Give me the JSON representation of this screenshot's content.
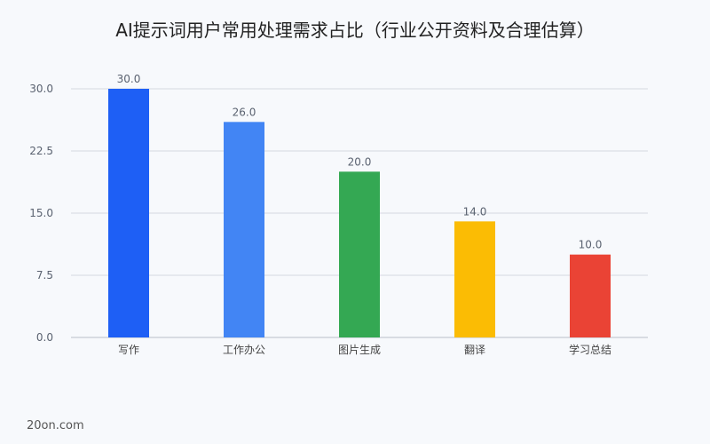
{
  "chart_data": {
    "type": "bar",
    "title": "AI提示词用户常用处理需求占比（行业公开资料及合理估算）",
    "categories": [
      "写作",
      "工作办公",
      "图片生成",
      "翻译",
      "学习总结"
    ],
    "values": [
      30.0,
      26.0,
      20.0,
      14.0,
      10.0
    ],
    "value_labels": [
      "30.0",
      "26.0",
      "20.0",
      "14.0",
      "10.0"
    ],
    "colors": [
      "#1e5ff5",
      "#4285f4",
      "#34a853",
      "#fbbc04",
      "#ea4335"
    ],
    "yticks": [
      0,
      7.5,
      15,
      22.5,
      30
    ],
    "ytick_labels": [
      "0.0",
      "7.5",
      "15.0",
      "22.5",
      "30.0"
    ],
    "ylim": [
      0,
      30
    ],
    "grid": true,
    "xlabel": "",
    "ylabel": ""
  },
  "footer": {
    "watermark": "20on.com"
  }
}
